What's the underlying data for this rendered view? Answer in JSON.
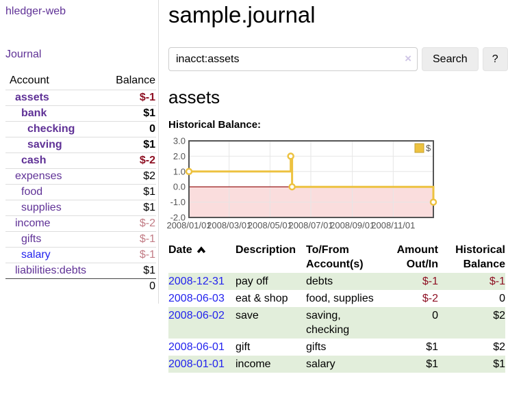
{
  "brand": "hledger-web",
  "nav": {
    "journal": "Journal"
  },
  "colors": {
    "accent_purple": "#5f3196",
    "link_blue": "#2222ee",
    "negative_strong": "#8e1023",
    "negative_muted": "#c27c85",
    "row_stripe_green": "#e2eedb",
    "chart_series_yellow": "#edc240",
    "chart_negative_fill": "#fadddd",
    "chart_zero_line": "#8b0000",
    "chart_border_gray": "#545454"
  },
  "sidebar": {
    "account_header": "Account",
    "balance_header": "Balance",
    "accounts": [
      {
        "name": "assets",
        "balance": "$-1",
        "indent": 0,
        "bold": true,
        "link": "purple",
        "balance_color": "negative"
      },
      {
        "name": "bank",
        "balance": "$1",
        "indent": 1,
        "bold": true,
        "link": "purple",
        "balance_color": "normal"
      },
      {
        "name": "checking",
        "balance": "0",
        "indent": 2,
        "bold": true,
        "link": "purple",
        "balance_color": "normal"
      },
      {
        "name": "saving",
        "balance": "$1",
        "indent": 2,
        "bold": true,
        "link": "purple",
        "balance_color": "normal"
      },
      {
        "name": "cash",
        "balance": "$-2",
        "indent": 1,
        "bold": true,
        "link": "purple",
        "balance_color": "negative"
      },
      {
        "name": "expenses",
        "balance": "$2",
        "indent": 0,
        "bold": false,
        "link": "purple",
        "balance_color": "normal"
      },
      {
        "name": "food",
        "balance": "$1",
        "indent": 1,
        "bold": false,
        "link": "purple",
        "balance_color": "normal"
      },
      {
        "name": "supplies",
        "balance": "$1",
        "indent": 1,
        "bold": false,
        "link": "purple",
        "balance_color": "normal"
      },
      {
        "name": "income",
        "balance": "$-2",
        "indent": 0,
        "bold": false,
        "link": "purple",
        "balance_color": "negative-muted"
      },
      {
        "name": "gifts",
        "balance": "$-1",
        "indent": 1,
        "bold": false,
        "link": "purple",
        "balance_color": "negative-muted"
      },
      {
        "name": "salary",
        "balance": "$-1",
        "indent": 1,
        "bold": false,
        "link": "blue",
        "balance_color": "negative-muted"
      },
      {
        "name": "liabilities:debts",
        "balance": "$1",
        "indent": 0,
        "bold": false,
        "link": "purple",
        "balance_color": "normal"
      }
    ],
    "total": "0"
  },
  "main": {
    "title": "sample.journal",
    "search": {
      "value": "inacct:assets",
      "clear_icon": "×",
      "search_button": "Search",
      "help_button": "?"
    },
    "account_heading": "assets",
    "section_label": "Historical Balance:"
  },
  "chart_data": {
    "type": "line",
    "step": true,
    "title": "Historical Balance",
    "series": [
      {
        "name": "$",
        "color": "#edc240",
        "points": [
          {
            "x": "2008-01-01",
            "y": 1
          },
          {
            "x": "2008-06-01",
            "y": 2
          },
          {
            "x": "2008-06-03",
            "y": 0
          },
          {
            "x": "2008-12-31",
            "y": -1
          }
        ]
      }
    ],
    "x_ticks": [
      "2008/01/01",
      "2008/03/01",
      "2008/05/01",
      "2008/07/01",
      "2008/09/01",
      "2008/11/01"
    ],
    "y_ticks": [
      "3.0",
      "2.0",
      "1.0",
      "0.0",
      "-1.0",
      "-2.0"
    ],
    "xlim": [
      "2008-01-01",
      "2008-12-31"
    ],
    "ylim": [
      -2,
      3
    ],
    "grid": true,
    "legend": {
      "label": "$",
      "position": "top-right"
    },
    "negative_region": true
  },
  "register": {
    "headers": {
      "date": "Date",
      "description": "Description",
      "accounts": "To/From Account(s)",
      "amount": "Amount Out/In",
      "balance": "Historical Balance"
    },
    "rows": [
      {
        "date": "2008-12-31",
        "description": "pay off",
        "accounts": "debts",
        "amount": "$-1",
        "amount_negative": true,
        "balance": "$-1",
        "balance_negative": true
      },
      {
        "date": "2008-06-03",
        "description": "eat & shop",
        "accounts": "food, supplies",
        "amount": "$-2",
        "amount_negative": true,
        "balance": "0",
        "balance_negative": false
      },
      {
        "date": "2008-06-02",
        "description": "save",
        "accounts": "saving, checking",
        "amount": "0",
        "amount_negative": false,
        "balance": "$2",
        "balance_negative": false
      },
      {
        "date": "2008-06-01",
        "description": "gift",
        "accounts": "gifts",
        "amount": "$1",
        "amount_negative": false,
        "balance": "$2",
        "balance_negative": false
      },
      {
        "date": "2008-01-01",
        "description": "income",
        "accounts": "salary",
        "amount": "$1",
        "amount_negative": false,
        "balance": "$1",
        "balance_negative": false
      }
    ]
  }
}
